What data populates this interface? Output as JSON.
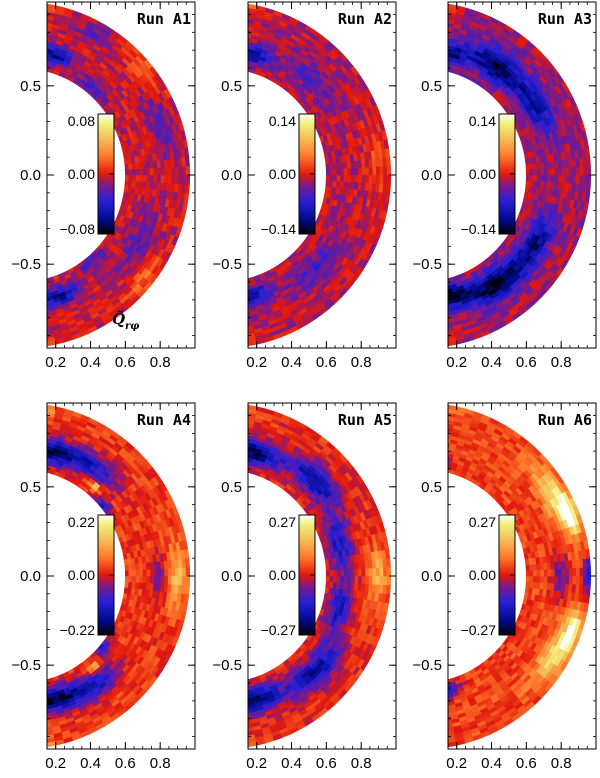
{
  "chart_data": [
    {
      "type": "heatmap",
      "title": "Run A1",
      "colorbar": {
        "max_label": "0.08",
        "mid_label": "0.00",
        "min_label": "−0.08",
        "range": [
          -0.08,
          0.08
        ]
      },
      "quantity_label": {
        "symbol": "Q̃",
        "subscript": "rφ"
      },
      "x_ticks": [
        "0.2",
        "0.4",
        "0.6",
        "0.8"
      ],
      "y_ticks": [
        "0.5",
        "0.0",
        "−0.5"
      ],
      "xlim": [
        0.15,
        1.0
      ],
      "ylim": [
        -0.97,
        0.97
      ],
      "shell": {
        "r_inner": 0.6,
        "r_outer": 0.97
      },
      "features": [
        {
          "r": 0.64,
          "lat": 50,
          "v": -0.3,
          "w": 0.05
        },
        {
          "r": 0.64,
          "lat": -50,
          "v": -0.3,
          "w": 0.05
        },
        {
          "r": 0.85,
          "lat": 20,
          "v": -0.25,
          "w": 0.07
        },
        {
          "r": 0.78,
          "lat": -30,
          "v": -0.25,
          "w": 0.07
        },
        {
          "r": 0.9,
          "lat": 60,
          "v": -0.2,
          "w": 0.06
        },
        {
          "r": 0.7,
          "lat": 75,
          "v": -0.7,
          "w": 0.05
        },
        {
          "r": 0.72,
          "lat": -72,
          "v": -0.7,
          "w": 0.05
        },
        {
          "r": 0.96,
          "lat": 88,
          "v": 0.95,
          "w": 0.04
        },
        {
          "r": 0.96,
          "lat": -88,
          "v": 0.95,
          "w": 0.04
        },
        {
          "r": 0.92,
          "lat": 40,
          "v": 0.25,
          "w": 0.06
        },
        {
          "r": 0.92,
          "lat": -40,
          "v": 0.25,
          "w": 0.06
        }
      ],
      "background": -0.05
    },
    {
      "type": "heatmap",
      "title": "Run A2",
      "colorbar": {
        "max_label": "0.14",
        "mid_label": "0.00",
        "min_label": "−0.14",
        "range": [
          -0.14,
          0.14
        ]
      },
      "x_ticks": [
        "0.2",
        "0.4",
        "0.6",
        "0.8"
      ],
      "y_ticks": [
        "0.5",
        "0.0",
        "−0.5"
      ],
      "xlim": [
        0.15,
        1.0
      ],
      "ylim": [
        -0.97,
        0.97
      ],
      "shell": {
        "r_inner": 0.6,
        "r_outer": 0.97
      },
      "features": [
        {
          "r": 0.75,
          "lat": 45,
          "v": -0.3,
          "w": 0.07
        },
        {
          "r": 0.75,
          "lat": -45,
          "v": -0.3,
          "w": 0.07
        },
        {
          "r": 0.7,
          "lat": 75,
          "v": -0.65,
          "w": 0.05
        },
        {
          "r": 0.7,
          "lat": -75,
          "v": -0.6,
          "w": 0.05
        },
        {
          "r": 0.96,
          "lat": 88,
          "v": 0.95,
          "w": 0.04
        },
        {
          "r": 0.96,
          "lat": -88,
          "v": 0.95,
          "w": 0.04
        },
        {
          "r": 0.9,
          "lat": 5,
          "v": 0.2,
          "w": 0.08
        }
      ],
      "background": -0.08
    },
    {
      "type": "heatmap",
      "title": "Run A3",
      "colorbar": {
        "max_label": "0.14",
        "mid_label": "0.00",
        "min_label": "−0.14",
        "range": [
          -0.14,
          0.14
        ]
      },
      "x_ticks": [
        "0.2",
        "0.4",
        "0.6",
        "0.8"
      ],
      "y_ticks": [
        "0.5",
        "0.0",
        "−0.5"
      ],
      "xlim": [
        0.15,
        1.0
      ],
      "ylim": [
        -0.97,
        0.97
      ],
      "shell": {
        "r_inner": 0.6,
        "r_outer": 0.97
      },
      "features": [
        {
          "r": 0.75,
          "lat": 55,
          "v": -0.8,
          "w": 0.08
        },
        {
          "r": 0.75,
          "lat": -55,
          "v": -0.85,
          "w": 0.08
        },
        {
          "r": 0.76,
          "lat": 30,
          "v": -0.55,
          "w": 0.07
        },
        {
          "r": 0.76,
          "lat": -30,
          "v": -0.6,
          "w": 0.07
        },
        {
          "r": 0.7,
          "lat": 80,
          "v": -0.75,
          "w": 0.06
        },
        {
          "r": 0.7,
          "lat": -78,
          "v": -0.9,
          "w": 0.06
        },
        {
          "r": 0.96,
          "lat": 88,
          "v": 0.95,
          "w": 0.04
        },
        {
          "r": 0.96,
          "lat": -88,
          "v": 0.95,
          "w": 0.04
        }
      ],
      "background": -0.12
    },
    {
      "type": "heatmap",
      "title": "Run A4",
      "colorbar": {
        "max_label": "0.22",
        "mid_label": "0.00",
        "min_label": "−0.22",
        "range": [
          -0.22,
          0.22
        ]
      },
      "x_ticks": [
        "0.2",
        "0.4",
        "0.6",
        "0.8"
      ],
      "y_ticks": [
        "0.5",
        "0.0",
        "−0.5"
      ],
      "xlim": [
        0.15,
        1.0
      ],
      "ylim": [
        -0.97,
        0.97
      ],
      "shell": {
        "r_inner": 0.6,
        "r_outer": 0.97
      },
      "features": [
        {
          "r": 0.72,
          "lat": 75,
          "v": -0.95,
          "w": 0.07
        },
        {
          "r": 0.72,
          "lat": -75,
          "v": -1.0,
          "w": 0.07
        },
        {
          "r": 0.75,
          "lat": 55,
          "v": -0.6,
          "w": 0.07
        },
        {
          "r": 0.75,
          "lat": -55,
          "v": -0.65,
          "w": 0.07
        },
        {
          "r": 0.8,
          "lat": 0,
          "v": -0.3,
          "w": 0.05
        },
        {
          "r": 0.9,
          "lat": 0,
          "v": 0.45,
          "w": 0.06
        },
        {
          "r": 0.62,
          "lat": 40,
          "v": -0.7,
          "w": 0.03
        },
        {
          "r": 0.62,
          "lat": -40,
          "v": -0.7,
          "w": 0.03
        },
        {
          "r": 0.96,
          "lat": 88,
          "v": 0.95,
          "w": 0.04
        },
        {
          "r": 0.96,
          "lat": -88,
          "v": 0.95,
          "w": 0.04
        },
        {
          "r": 0.66,
          "lat": 50,
          "v": 0.7,
          "w": 0.02
        },
        {
          "r": 0.66,
          "lat": -50,
          "v": 0.7,
          "w": 0.02
        }
      ],
      "background": 0.1
    },
    {
      "type": "heatmap",
      "title": "Run A5",
      "colorbar": {
        "max_label": "0.27",
        "mid_label": "0.00",
        "min_label": "−0.27",
        "range": [
          -0.27,
          0.27
        ]
      },
      "x_ticks": [
        "0.2",
        "0.4",
        "0.6",
        "0.8"
      ],
      "y_ticks": [
        "0.5",
        "0.0",
        "−0.5"
      ],
      "xlim": [
        0.15,
        1.0
      ],
      "ylim": [
        -0.97,
        0.97
      ],
      "shell": {
        "r_inner": 0.6,
        "r_outer": 0.97
      },
      "features": [
        {
          "r": 0.72,
          "lat": 75,
          "v": -0.9,
          "w": 0.07
        },
        {
          "r": 0.72,
          "lat": -75,
          "v": -0.95,
          "w": 0.07
        },
        {
          "r": 0.76,
          "lat": 45,
          "v": -0.75,
          "w": 0.08
        },
        {
          "r": 0.76,
          "lat": -45,
          "v": -0.75,
          "w": 0.08
        },
        {
          "r": 0.7,
          "lat": 15,
          "v": -0.6,
          "w": 0.07
        },
        {
          "r": 0.7,
          "lat": -15,
          "v": -0.6,
          "w": 0.07
        },
        {
          "r": 0.9,
          "lat": 0,
          "v": 0.45,
          "w": 0.06
        },
        {
          "r": 0.96,
          "lat": 88,
          "v": 0.95,
          "w": 0.04
        },
        {
          "r": 0.96,
          "lat": -88,
          "v": 0.95,
          "w": 0.04
        }
      ],
      "background": 0.05
    },
    {
      "type": "heatmap",
      "title": "Run A6",
      "colorbar": {
        "max_label": "0.27",
        "mid_label": "0.00",
        "min_label": "−0.27",
        "range": [
          -0.27,
          0.27
        ]
      },
      "x_ticks": [
        "0.2",
        "0.4",
        "0.6",
        "0.8"
      ],
      "y_ticks": [
        "0.5",
        "0.0",
        "−0.5"
      ],
      "xlim": [
        0.15,
        1.0
      ],
      "ylim": [
        -0.97,
        0.97
      ],
      "shell": {
        "r_inner": 0.6,
        "r_outer": 0.97
      },
      "features": [
        {
          "r": 0.88,
          "lat": 30,
          "v": 0.65,
          "w": 0.07
        },
        {
          "r": 0.88,
          "lat": -30,
          "v": 0.6,
          "w": 0.07
        },
        {
          "r": 0.92,
          "lat": 22,
          "v": 0.8,
          "w": 0.04
        },
        {
          "r": 0.92,
          "lat": -20,
          "v": 0.8,
          "w": 0.04
        },
        {
          "r": 0.8,
          "lat": 0,
          "v": -0.4,
          "w": 0.05
        },
        {
          "r": 0.96,
          "lat": 0,
          "v": -0.75,
          "w": 0.03
        },
        {
          "r": 0.66,
          "lat": -78,
          "v": -0.8,
          "w": 0.04
        },
        {
          "r": 0.66,
          "lat": 78,
          "v": -0.2,
          "w": 0.04
        },
        {
          "r": 0.96,
          "lat": 88,
          "v": 0.95,
          "w": 0.04
        }
      ],
      "background": 0.12
    }
  ],
  "colorscale": [
    {
      "t": 0.0,
      "c": "#000000"
    },
    {
      "t": 0.12,
      "c": "#000a8c"
    },
    {
      "t": 0.28,
      "c": "#2a20d8"
    },
    {
      "t": 0.4,
      "c": "#7a1a8a"
    },
    {
      "t": 0.5,
      "c": "#e2180c"
    },
    {
      "t": 0.65,
      "c": "#ff7a2a"
    },
    {
      "t": 0.8,
      "c": "#f4c05a"
    },
    {
      "t": 0.92,
      "c": "#f2f07a"
    },
    {
      "t": 1.0,
      "c": "#ffffff"
    }
  ]
}
